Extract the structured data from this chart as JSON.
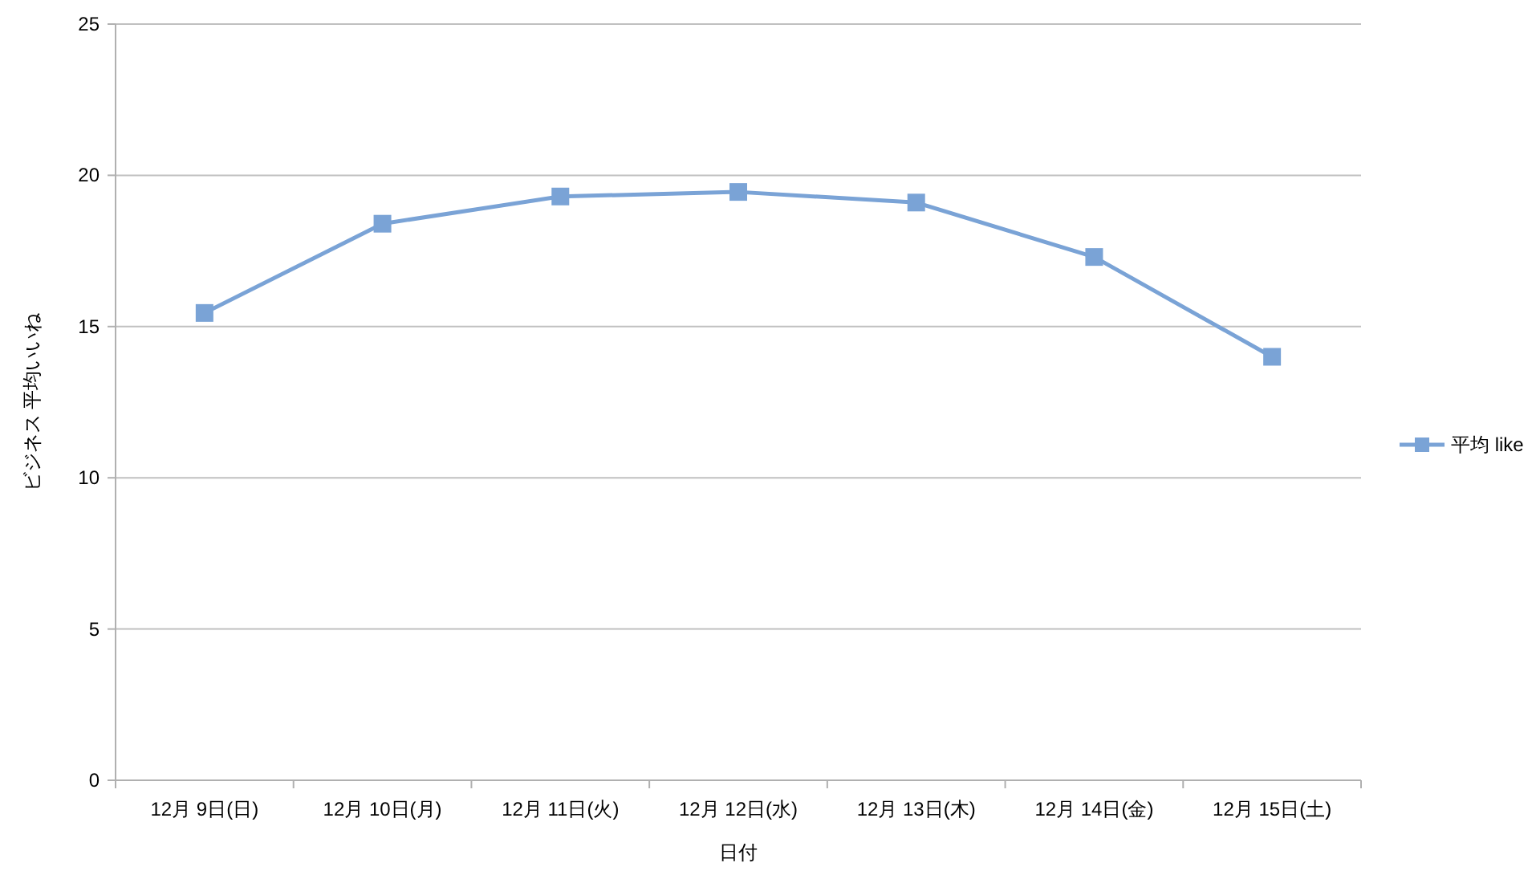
{
  "chart_data": {
    "type": "line",
    "xlabel": "日付",
    "ylabel": "ビジネス 平均いいね",
    "categories": [
      "12月 9日(日)",
      "12月 10日(月)",
      "12月 11日(火)",
      "12月 12日(水)",
      "12月 13日(木)",
      "12月 14日(金)",
      "12月 15日(土)"
    ],
    "series": [
      {
        "name": "平均 like",
        "color": "#7aa3d6",
        "values": [
          15.45,
          18.4,
          19.3,
          19.45,
          19.1,
          17.3,
          14.0
        ]
      }
    ],
    "ylim": [
      0,
      25
    ],
    "yticks": [
      0,
      5,
      10,
      15,
      20,
      25
    ],
    "grid": "y",
    "legend": "right",
    "marker": "square",
    "line_style": "solid"
  }
}
